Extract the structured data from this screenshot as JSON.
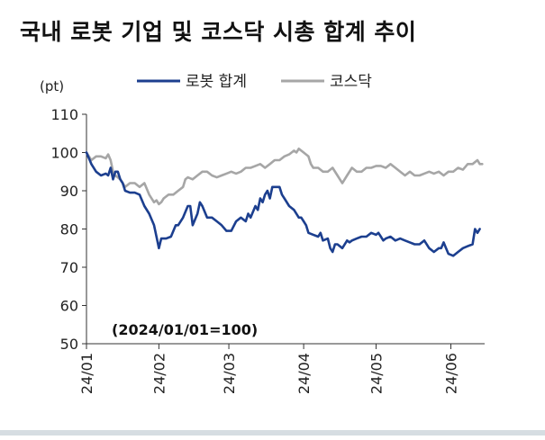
{
  "title": "국내 로봇 기업 및 코스닥 시총 합계 추이",
  "chart_data": {
    "type": "line",
    "ylabel": "(pt)",
    "annotation": "(2024/01/01=100)",
    "ylim": [
      50,
      110
    ],
    "yticks": [
      50,
      60,
      70,
      80,
      90,
      100,
      110
    ],
    "xlim": [
      0,
      165
    ],
    "xticks": [
      {
        "x": 0,
        "label": "24/01"
      },
      {
        "x": 30,
        "label": "24/02"
      },
      {
        "x": 59,
        "label": "24/03"
      },
      {
        "x": 90,
        "label": "24/04"
      },
      {
        "x": 120,
        "label": "24/05"
      },
      {
        "x": 151,
        "label": "24/06"
      }
    ],
    "legend_position": "top",
    "series": [
      {
        "name": "로봇 합계",
        "color": "#1c3f8f",
        "points": [
          [
            0,
            100
          ],
          [
            2,
            97
          ],
          [
            4,
            95
          ],
          [
            6,
            94
          ],
          [
            8,
            94.5
          ],
          [
            9,
            94
          ],
          [
            10,
            96
          ],
          [
            11,
            93
          ],
          [
            12,
            95
          ],
          [
            13,
            95
          ],
          [
            14,
            93
          ],
          [
            15,
            92
          ],
          [
            16,
            90
          ],
          [
            18,
            89.5
          ],
          [
            20,
            89.5
          ],
          [
            22,
            89
          ],
          [
            24,
            86
          ],
          [
            26,
            84
          ],
          [
            28,
            81
          ],
          [
            29,
            78
          ],
          [
            30,
            75
          ],
          [
            31,
            77.5
          ],
          [
            33,
            77.5
          ],
          [
            35,
            78
          ],
          [
            37,
            81
          ],
          [
            38,
            81
          ],
          [
            40,
            83
          ],
          [
            42,
            86
          ],
          [
            43,
            86
          ],
          [
            44,
            81
          ],
          [
            46,
            84
          ],
          [
            47,
            87
          ],
          [
            48,
            86
          ],
          [
            50,
            83
          ],
          [
            52,
            83
          ],
          [
            54,
            82
          ],
          [
            56,
            81
          ],
          [
            58,
            79.5
          ],
          [
            60,
            79.5
          ],
          [
            62,
            82
          ],
          [
            64,
            83
          ],
          [
            66,
            82
          ],
          [
            67,
            84
          ],
          [
            68,
            83
          ],
          [
            70,
            86
          ],
          [
            71,
            85
          ],
          [
            72,
            88
          ],
          [
            73,
            87
          ],
          [
            74,
            89
          ],
          [
            75,
            90
          ],
          [
            76,
            88
          ],
          [
            77,
            91
          ],
          [
            79,
            91
          ],
          [
            80,
            91
          ],
          [
            81,
            89
          ],
          [
            82,
            88
          ],
          [
            84,
            86
          ],
          [
            86,
            85
          ],
          [
            88,
            83
          ],
          [
            89,
            83
          ],
          [
            90,
            82
          ],
          [
            91,
            81
          ],
          [
            92,
            79
          ],
          [
            94,
            78.5
          ],
          [
            96,
            78
          ],
          [
            97,
            79
          ],
          [
            98,
            77
          ],
          [
            100,
            77.5
          ],
          [
            101,
            75
          ],
          [
            102,
            74
          ],
          [
            103,
            76
          ],
          [
            104,
            76
          ],
          [
            106,
            75
          ],
          [
            108,
            77
          ],
          [
            109,
            76.5
          ],
          [
            110,
            77
          ],
          [
            112,
            77.5
          ],
          [
            114,
            78
          ],
          [
            116,
            78
          ],
          [
            118,
            79
          ],
          [
            120,
            78.5
          ],
          [
            121,
            79
          ],
          [
            122,
            78
          ],
          [
            123,
            77
          ],
          [
            124,
            77.5
          ],
          [
            126,
            78
          ],
          [
            128,
            77
          ],
          [
            130,
            77.5
          ],
          [
            132,
            77
          ],
          [
            134,
            76.5
          ],
          [
            136,
            76
          ],
          [
            138,
            76
          ],
          [
            140,
            77
          ],
          [
            142,
            75
          ],
          [
            144,
            74
          ],
          [
            146,
            75
          ],
          [
            147,
            75
          ],
          [
            148,
            76.5
          ],
          [
            149,
            75
          ],
          [
            150,
            73.5
          ],
          [
            152,
            73
          ],
          [
            154,
            74
          ],
          [
            156,
            75
          ],
          [
            158,
            75.5
          ],
          [
            160,
            76
          ],
          [
            161,
            80
          ],
          [
            162,
            79
          ],
          [
            163,
            80
          ]
        ]
      },
      {
        "name": "코스닥",
        "color": "#a6a6a6",
        "points": [
          [
            0,
            100
          ],
          [
            2,
            98
          ],
          [
            4,
            99
          ],
          [
            6,
            99
          ],
          [
            8,
            98.5
          ],
          [
            9,
            99.5
          ],
          [
            10,
            98
          ],
          [
            11,
            95
          ],
          [
            12,
            94
          ],
          [
            14,
            93
          ],
          [
            16,
            91
          ],
          [
            18,
            92
          ],
          [
            20,
            92
          ],
          [
            22,
            91
          ],
          [
            24,
            92
          ],
          [
            26,
            89
          ],
          [
            28,
            87
          ],
          [
            29,
            87.5
          ],
          [
            30,
            86.5
          ],
          [
            31,
            87
          ],
          [
            32,
            88
          ],
          [
            34,
            89
          ],
          [
            36,
            89
          ],
          [
            38,
            90
          ],
          [
            40,
            91
          ],
          [
            41,
            93
          ],
          [
            42,
            93.5
          ],
          [
            44,
            93
          ],
          [
            46,
            94
          ],
          [
            48,
            95
          ],
          [
            50,
            95
          ],
          [
            52,
            94
          ],
          [
            54,
            93.5
          ],
          [
            56,
            94
          ],
          [
            58,
            94.5
          ],
          [
            60,
            95
          ],
          [
            62,
            94.5
          ],
          [
            64,
            95
          ],
          [
            66,
            96
          ],
          [
            68,
            96
          ],
          [
            70,
            96.5
          ],
          [
            72,
            97
          ],
          [
            74,
            96
          ],
          [
            76,
            97
          ],
          [
            78,
            98
          ],
          [
            80,
            98
          ],
          [
            82,
            99
          ],
          [
            84,
            99.5
          ],
          [
            86,
            100.5
          ],
          [
            87,
            100
          ],
          [
            88,
            101
          ],
          [
            90,
            100
          ],
          [
            92,
            99
          ],
          [
            93,
            97
          ],
          [
            94,
            96
          ],
          [
            96,
            96
          ],
          [
            98,
            95
          ],
          [
            100,
            95
          ],
          [
            102,
            96
          ],
          [
            104,
            94
          ],
          [
            105,
            93
          ],
          [
            106,
            92
          ],
          [
            108,
            94
          ],
          [
            110,
            96
          ],
          [
            112,
            95
          ],
          [
            114,
            95
          ],
          [
            116,
            96
          ],
          [
            118,
            96
          ],
          [
            120,
            96.5
          ],
          [
            122,
            96.5
          ],
          [
            124,
            96
          ],
          [
            126,
            97
          ],
          [
            128,
            96
          ],
          [
            130,
            95
          ],
          [
            132,
            94
          ],
          [
            134,
            95
          ],
          [
            136,
            94
          ],
          [
            138,
            94
          ],
          [
            140,
            94.5
          ],
          [
            142,
            95
          ],
          [
            144,
            94.5
          ],
          [
            146,
            95
          ],
          [
            148,
            94
          ],
          [
            150,
            95
          ],
          [
            152,
            95
          ],
          [
            154,
            96
          ],
          [
            156,
            95.5
          ],
          [
            158,
            97
          ],
          [
            160,
            97
          ],
          [
            162,
            98
          ],
          [
            163,
            97
          ],
          [
            164,
            97
          ]
        ]
      }
    ]
  }
}
